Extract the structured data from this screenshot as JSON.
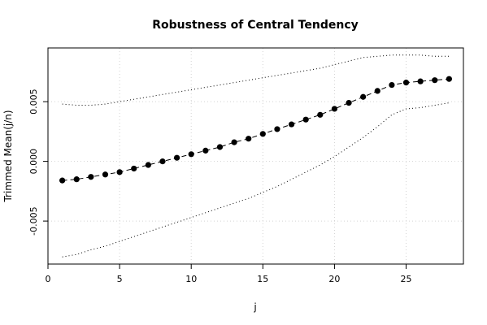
{
  "chart_data": {
    "type": "line",
    "title": "Robustness of Central Tendency",
    "xlabel": "j",
    "ylabel": "Trimmed Mean(j/n)",
    "xlim": [
      0,
      29
    ],
    "ylim": [
      -0.0086,
      0.0095
    ],
    "x_ticks": [
      0,
      5,
      10,
      15,
      20,
      25
    ],
    "x_tick_labels": [
      "0",
      "5",
      "10",
      "15",
      "20",
      "25"
    ],
    "y_ticks": [
      -0.005,
      0.0,
      0.005
    ],
    "y_tick_labels": [
      "-0.005",
      "0.000",
      "0.005"
    ],
    "grid": true,
    "x": [
      1,
      2,
      3,
      4,
      5,
      6,
      7,
      8,
      9,
      10,
      11,
      12,
      13,
      14,
      15,
      16,
      17,
      18,
      19,
      20,
      21,
      22,
      23,
      24,
      25,
      26,
      27,
      28
    ],
    "series": [
      {
        "style": "points-dashed",
        "values": [
          -0.0016,
          -0.0015,
          -0.0013,
          -0.0011,
          -0.0009,
          -0.0006,
          -0.0003,
          0.0,
          0.0003,
          0.0006,
          0.0009,
          0.0012,
          0.0016,
          0.0019,
          0.0023,
          0.0027,
          0.0031,
          0.0035,
          0.0039,
          0.0044,
          0.0049,
          0.0054,
          0.0059,
          0.0064,
          0.0066,
          0.0067,
          0.0068,
          0.0069
        ]
      },
      {
        "style": "dotted",
        "values": [
          0.0048,
          0.0047,
          0.0047,
          0.0048,
          0.005,
          0.0052,
          0.0054,
          0.0056,
          0.0058,
          0.006,
          0.0062,
          0.0064,
          0.0066,
          0.0068,
          0.007,
          0.0072,
          0.0074,
          0.0076,
          0.0078,
          0.0081,
          0.0084,
          0.0087,
          0.0088,
          0.0089,
          0.0089,
          0.0089,
          0.0088,
          0.0088
        ]
      },
      {
        "style": "dotted",
        "values": [
          -0.008,
          -0.0078,
          -0.0074,
          -0.0071,
          -0.0067,
          -0.0063,
          -0.0059,
          -0.0055,
          -0.0051,
          -0.0047,
          -0.0043,
          -0.0039,
          -0.0035,
          -0.0031,
          -0.0026,
          -0.0021,
          -0.0015,
          -0.0009,
          -0.0003,
          0.0004,
          0.0012,
          0.002,
          0.0029,
          0.0039,
          0.0044,
          0.0045,
          0.0047,
          0.0049
        ]
      }
    ]
  }
}
